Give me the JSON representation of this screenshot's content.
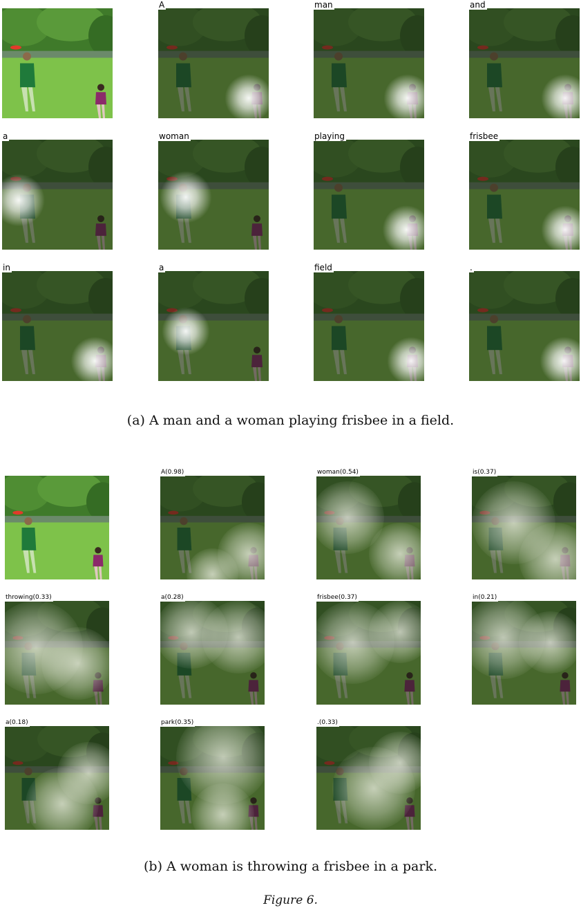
{
  "panel_a": {
    "words": [
      "A",
      "man",
      "and",
      "a",
      "woman",
      "playing",
      "frisbee",
      "in",
      "a",
      "field",
      "."
    ],
    "caption": "(a) A man and a woman playing frisbee in a field."
  },
  "panel_b": {
    "words": [
      "A(0.98)",
      "woman(0.54)",
      "is(0.37)",
      "throwing(0.33)",
      "a(0.28)",
      "frisbee(0.37)",
      "in(0.21)",
      "a(0.18)",
      "park(0.35)",
      ".(0.33)"
    ],
    "caption": "(b) A woman is throwing a frisbee in a park."
  },
  "figure_label": "Figure 6."
}
